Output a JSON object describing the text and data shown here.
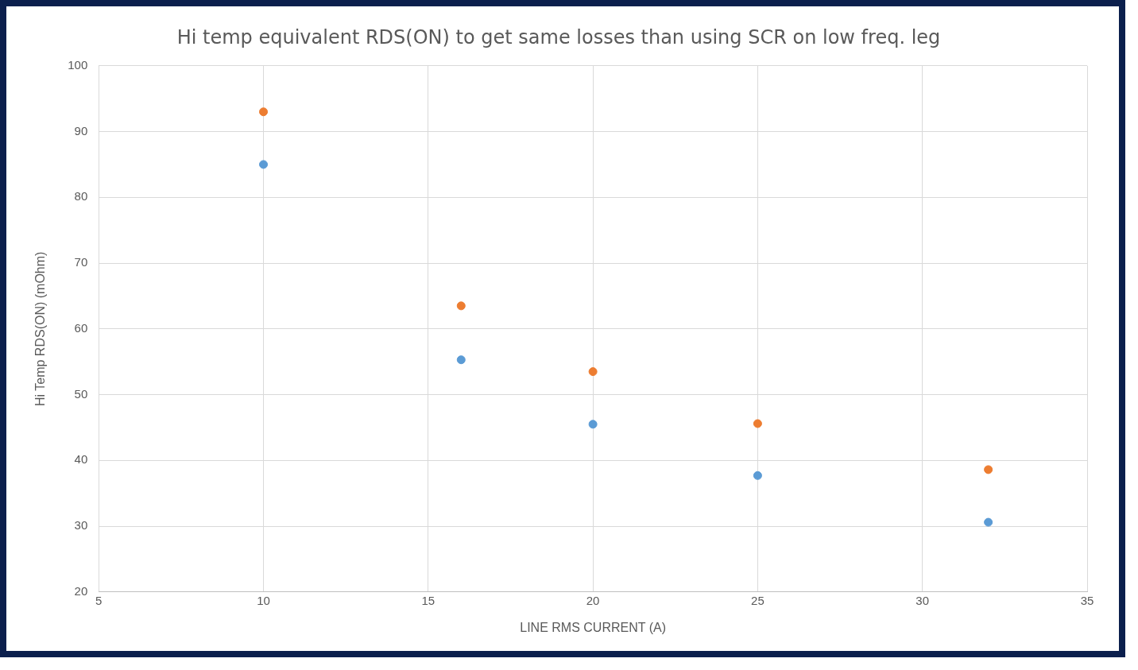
{
  "chart_data": {
    "type": "scatter",
    "title": "Hi temp equivalent RDS(ON) to get same losses than using SCR on low freq. leg",
    "xlabel": "LINE RMS CURRENT (A)",
    "ylabel": "Hi Temp RDS(ON) (mOhm)",
    "x": [
      10,
      16,
      20,
      25,
      32
    ],
    "series": [
      {
        "color": "#5b9bd5",
        "values": [
          85.0,
          55.3,
          45.5,
          37.7,
          30.6
        ]
      },
      {
        "color": "#ed7d31",
        "values": [
          93.0,
          63.5,
          53.5,
          45.6,
          38.6
        ]
      }
    ],
    "xlim": [
      5,
      35
    ],
    "xticks": [
      5,
      10,
      15,
      20,
      25,
      30,
      35
    ],
    "ylim": [
      20,
      100
    ],
    "yticks": [
      20,
      30,
      40,
      50,
      60,
      70,
      80,
      90,
      100
    ],
    "grid": true,
    "marker": "circle",
    "legend": false
  }
}
